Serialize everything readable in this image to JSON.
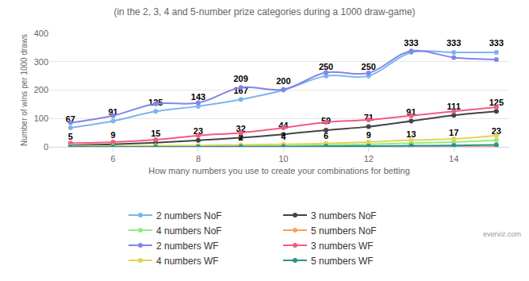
{
  "chart_data": {
    "type": "line",
    "subtitle": "(in the 2, 3, 4 and 5-number prize categories during a 1000 draw-game)",
    "x_label": "How many numbers you use to create your combinations for betting",
    "y_label": "Number of wins per 1000 draws",
    "credits": "everviz.com",
    "x": [
      5,
      6,
      7,
      8,
      9,
      10,
      11,
      12,
      13,
      14,
      15
    ],
    "xlim": [
      4.5,
      15.3
    ],
    "xticks": [
      6,
      8,
      10,
      12,
      14
    ],
    "ylim": [
      0,
      400
    ],
    "yticks": [
      0,
      100,
      200,
      300,
      400
    ],
    "grid": true,
    "legend": "bottom",
    "marker": "circle",
    "line_style": "spline",
    "series": [
      {
        "name": "2 numbers NoF",
        "color": "#7cb5ec",
        "data_labels": true,
        "values": [
          67,
          91,
          125,
          143,
          167,
          200,
          250,
          250,
          333,
          333,
          333
        ]
      },
      {
        "name": "3 numbers NoF",
        "color": "#434348",
        "data_labels": true,
        "values": [
          5,
          9,
          15,
          23,
          32,
          44,
          59,
          71,
          91,
          111,
          125
        ]
      },
      {
        "name": "4 numbers NoF",
        "color": "#90ed7d",
        "values": [
          0,
          1,
          1,
          1,
          2,
          4,
          6,
          9,
          13,
          17,
          23
        ],
        "value_labels": [
          null,
          null,
          null,
          null,
          "2",
          "4",
          "6",
          "9",
          "13",
          "17",
          "23"
        ]
      },
      {
        "name": "5 numbers NoF",
        "color": "#f7a35c",
        "values": [
          0,
          0,
          0,
          0,
          0,
          0,
          0,
          0.5,
          1,
          1,
          1
        ]
      },
      {
        "name": "2 numbers WF",
        "color": "#8085e9",
        "values": [
          85,
          110,
          152,
          155,
          209,
          202,
          262,
          260,
          338,
          315,
          308
        ],
        "value_labels": [
          null,
          null,
          null,
          null,
          "209",
          null,
          null,
          null,
          null,
          null,
          null
        ]
      },
      {
        "name": "3 numbers WF",
        "color": "#f15c80",
        "values": [
          13,
          17,
          25,
          40,
          50,
          67,
          87,
          95,
          110,
          125,
          140
        ]
      },
      {
        "name": "4 numbers WF",
        "color": "#e4d354",
        "values": [
          2,
          3,
          4,
          5,
          7,
          9,
          12,
          17,
          24,
          28,
          40
        ]
      },
      {
        "name": "5 numbers WF",
        "color": "#2b908f",
        "values": [
          0,
          0,
          0,
          0.3,
          0.5,
          1,
          2,
          3,
          4,
          5,
          7
        ]
      }
    ]
  }
}
